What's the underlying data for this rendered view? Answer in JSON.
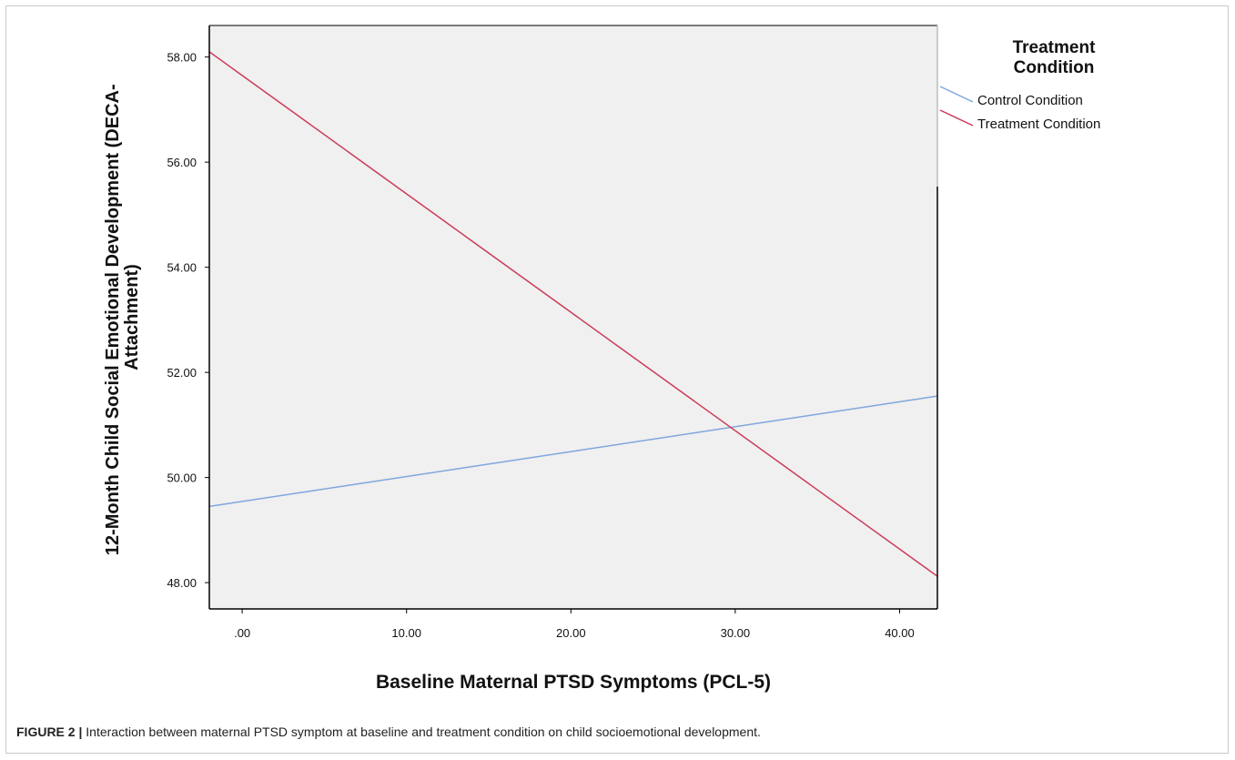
{
  "caption": {
    "label": "FIGURE 2 |",
    "text": " Interaction between maternal PTSD symptom at baseline and treatment condition on child socioemotional development."
  },
  "chart_data": {
    "type": "line",
    "title": "",
    "xlabel": "Baseline Maternal PTSD Symptoms (PCL-5)",
    "ylabel_lines": [
      "12-Month Child Social Emotional Development (DECA-",
      "Attachment)"
    ],
    "xlim": [
      -2.0,
      42.3
    ],
    "ylim": [
      47.5,
      58.6
    ],
    "x_ticks": [
      0,
      10,
      20,
      30,
      40
    ],
    "x_tick_labels": [
      ".00",
      "10.00",
      "20.00",
      "30.00",
      "40.00"
    ],
    "y_ticks": [
      48,
      50,
      52,
      54,
      56,
      58
    ],
    "y_tick_labels": [
      "48.00",
      "50.00",
      "52.00",
      "54.00",
      "56.00",
      "58.00"
    ],
    "grid": false,
    "plot_background": "#f0f0f0",
    "legend": {
      "title_lines": [
        "Treatment",
        "Condition"
      ],
      "placement": "right"
    },
    "series": [
      {
        "name": "Control Condition",
        "color": "#7fa6dd",
        "x": [
          -2.0,
          42.3
        ],
        "y": [
          49.45,
          51.55
        ]
      },
      {
        "name": "Treatment Condition",
        "color": "#cc3a59",
        "x": [
          -2.0,
          42.3
        ],
        "y": [
          58.1,
          48.12
        ]
      }
    ]
  }
}
